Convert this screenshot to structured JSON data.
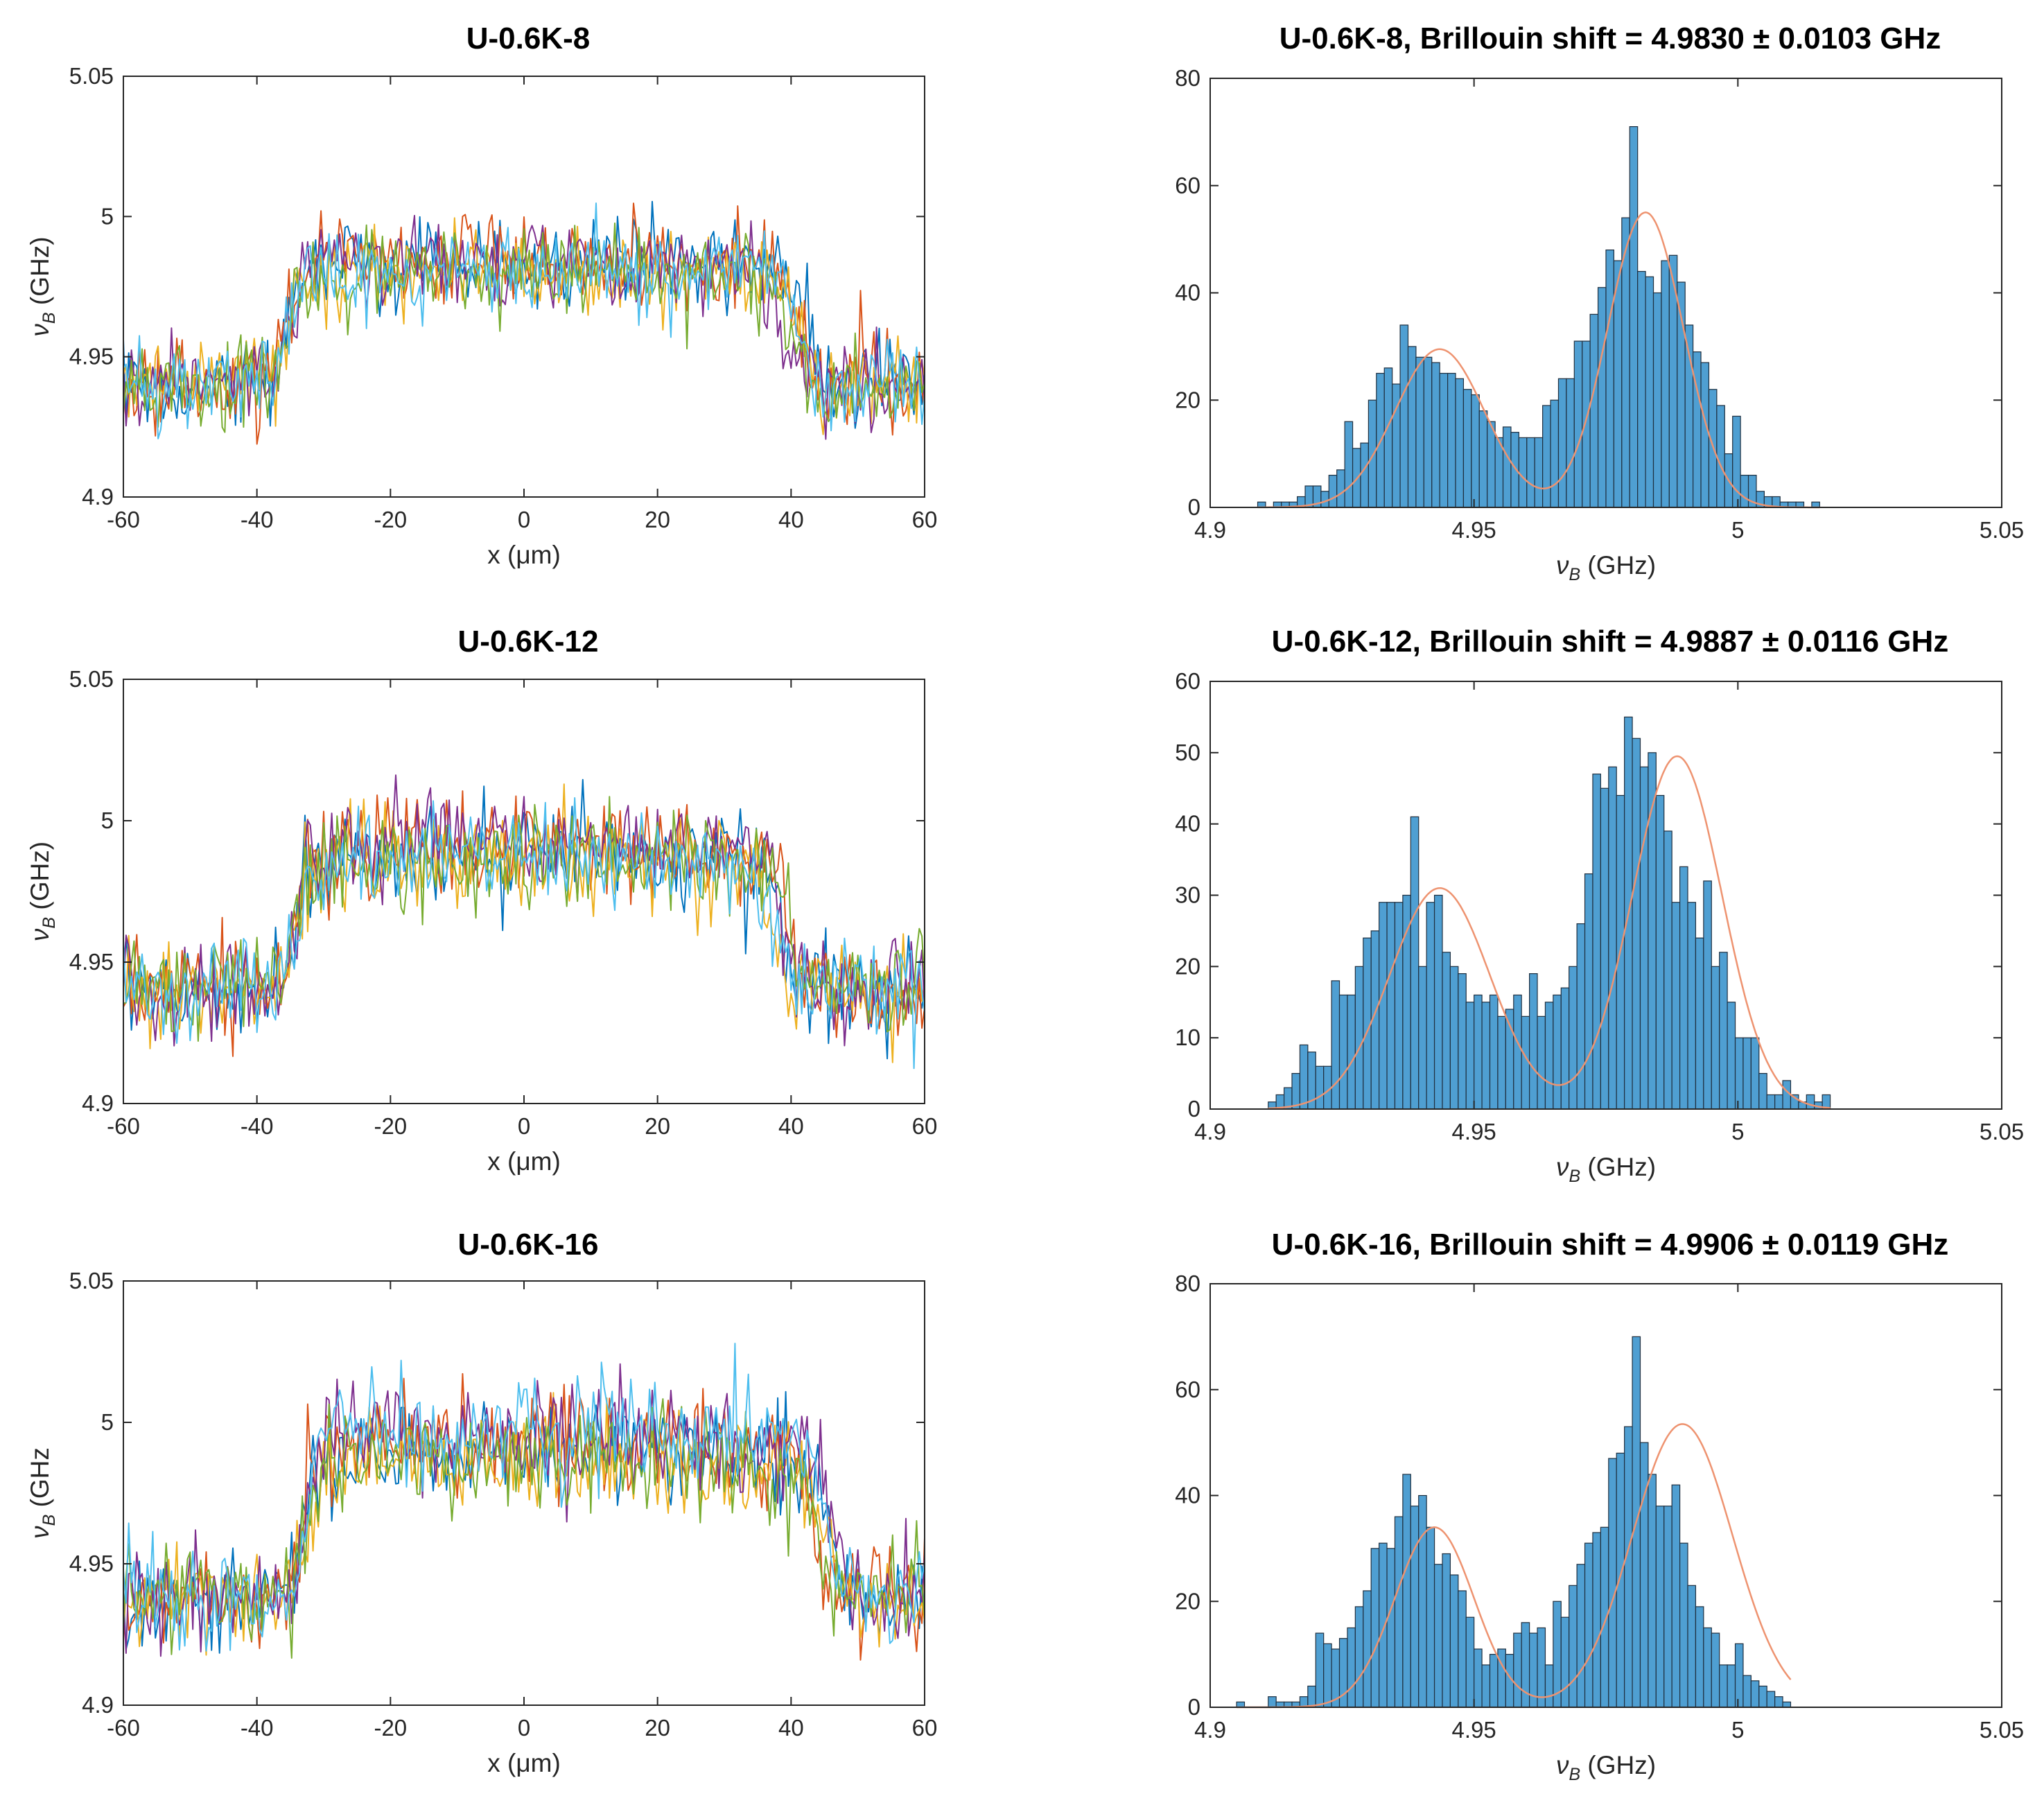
{
  "colors": {
    "trace_palette": [
      "#0072BD",
      "#D95319",
      "#EDB120",
      "#7E2F8E",
      "#77AC30",
      "#4DBEEE"
    ],
    "bar_fill": "#4f9fd2",
    "fit_line": "#ee9370"
  },
  "chart_data": [
    {
      "type": "line",
      "title": "U-0.6K-8",
      "xlabel": "x (μm)",
      "ylabel_main": "ν",
      "ylabel_sub": "B",
      "ylabel_rest": " (GHz)",
      "xlim": [
        -60,
        60
      ],
      "ylim": [
        4.9,
        5.05
      ],
      "xticks": [
        -60,
        -40,
        -20,
        0,
        20,
        40,
        60
      ],
      "xtick_labels": [
        "-60",
        "-40",
        "-20",
        "0",
        "20",
        "40",
        "60"
      ],
      "yticks": [
        4.9,
        4.95,
        5.0,
        5.05
      ],
      "ytick_labels": [
        "4.9",
        "4.95",
        "5",
        "5.05"
      ],
      "n_traces": 6,
      "baseline_ghz": 4.94,
      "plateau_ghz": 4.983,
      "step_left_um": -36,
      "step_right_um": 41,
      "noise_ghz": 0.0085,
      "series_shift_ghz": [
        0,
        0.002,
        -0.002,
        0.001,
        -0.003,
        -0.001
      ]
    },
    {
      "type": "bar",
      "title": "U-0.6K-8, Brillouin  shift = 4.9830 ± 0.0103 GHz",
      "xlabel_main": "ν",
      "xlabel_sub": "B",
      "xlabel_rest": " (GHz)",
      "xlim": [
        4.9,
        5.05
      ],
      "ylim": [
        0,
        80
      ],
      "xticks": [
        4.9,
        4.95,
        5.0,
        5.05
      ],
      "xtick_labels": [
        "4.9",
        "4.95",
        "5",
        "5.05"
      ],
      "yticks": [
        0,
        20,
        40,
        60,
        80
      ],
      "ytick_labels": [
        "0",
        "20",
        "40",
        "60",
        "80"
      ],
      "bin_start": 4.909,
      "bin_width": 0.0015,
      "counts": [
        1,
        0,
        1,
        1,
        1,
        2,
        4,
        4,
        3,
        6,
        7,
        16,
        11,
        12,
        20,
        25,
        26,
        23,
        34,
        30,
        28,
        28,
        27,
        25,
        25,
        24,
        22,
        21,
        18,
        16,
        13,
        15,
        14,
        13,
        13,
        13,
        19,
        20,
        24,
        24,
        31,
        31,
        36,
        41,
        48,
        46,
        54,
        71,
        44,
        43,
        40,
        46,
        47,
        42,
        34,
        29,
        27,
        22,
        19,
        10,
        17,
        6,
        6,
        3,
        2,
        2,
        1,
        1,
        1,
        0,
        1
      ],
      "fit_peaks": [
        {
          "amplitude": 29.5,
          "center": 4.9435,
          "sigma": 0.0085
        },
        {
          "amplitude": 55,
          "center": 4.9825,
          "sigma": 0.0072
        }
      ]
    },
    {
      "type": "line",
      "title": "U-0.6K-12",
      "xlabel": "x (μm)",
      "ylabel_main": "ν",
      "ylabel_sub": "B",
      "ylabel_rest": " (GHz)",
      "xlim": [
        -60,
        60
      ],
      "ylim": [
        4.9,
        5.05
      ],
      "xticks": [
        -60,
        -40,
        -20,
        0,
        20,
        40,
        60
      ],
      "xtick_labels": [
        "-60",
        "-40",
        "-20",
        "0",
        "20",
        "40",
        "60"
      ],
      "yticks": [
        4.9,
        4.95,
        5.0,
        5.05
      ],
      "ytick_labels": [
        "4.9",
        "4.95",
        "5",
        "5.05"
      ],
      "n_traces": 6,
      "baseline_ghz": 4.94,
      "plateau_ghz": 4.989,
      "step_left_um": -34,
      "step_right_um": 39,
      "noise_ghz": 0.0095,
      "series_shift_ghz": [
        0,
        0.002,
        -0.002,
        0.004,
        -0.003,
        -0.001
      ]
    },
    {
      "type": "bar",
      "title": "U-0.6K-12, Brillouin  shift = 4.9887 ± 0.0116 GHz",
      "xlabel_main": "ν",
      "xlabel_sub": "B",
      "xlabel_rest": " (GHz)",
      "xlim": [
        4.9,
        5.05
      ],
      "ylim": [
        0,
        60
      ],
      "xticks": [
        4.9,
        4.95,
        5.0,
        5.05
      ],
      "xtick_labels": [
        "4.9",
        "4.95",
        "5",
        "5.05"
      ],
      "yticks": [
        0,
        10,
        20,
        30,
        40,
        50,
        60
      ],
      "ytick_labels": [
        "0",
        "10",
        "20",
        "30",
        "40",
        "50",
        "60"
      ],
      "bin_start": 4.911,
      "bin_width": 0.0015,
      "counts": [
        1,
        2,
        3,
        5,
        9,
        8,
        6,
        6,
        18,
        16,
        16,
        20,
        24,
        25,
        29,
        29,
        29,
        30,
        41,
        20,
        29,
        30,
        22,
        20,
        19,
        15,
        16,
        15,
        16,
        13,
        14,
        16,
        13,
        19,
        13,
        15,
        16,
        17,
        20,
        26,
        33,
        47,
        45,
        48,
        44,
        55,
        52,
        48,
        50,
        44,
        39,
        29,
        34,
        29,
        24,
        32,
        20,
        22,
        15,
        10,
        10,
        10,
        5,
        2,
        2,
        4,
        2,
        1,
        2,
        1,
        2
      ],
      "fit_peaks": [
        {
          "amplitude": 31,
          "center": 4.9435,
          "sigma": 0.0095
        },
        {
          "amplitude": 49.5,
          "center": 4.9885,
          "sigma": 0.0085
        }
      ]
    },
    {
      "type": "line",
      "title": "U-0.6K-16",
      "xlabel": "x (μm)",
      "ylabel_main": "ν",
      "ylabel_sub": "B",
      "ylabel_rest": " (GHz",
      "xlim": [
        -60,
        60
      ],
      "ylim": [
        4.9,
        5.05
      ],
      "xticks": [
        -60,
        -40,
        -20,
        0,
        20,
        40,
        60
      ],
      "xtick_labels": [
        "-60",
        "-40",
        "-20",
        "0",
        "20",
        "40",
        "60"
      ],
      "yticks": [
        4.9,
        4.95,
        5.0,
        5.05
      ],
      "ytick_labels": [
        "4.9",
        "4.95",
        "5",
        "5.05"
      ],
      "n_traces": 6,
      "baseline_ghz": 4.938,
      "plateau_ghz": 4.991,
      "step_left_um": -32,
      "step_right_um": 45,
      "noise_ghz": 0.0095,
      "series_shift_ghz": [
        0,
        0.003,
        -0.005,
        0.004,
        -0.004,
        0.006
      ]
    },
    {
      "type": "bar",
      "title": "U-0.6K-16, Brillouin  shift = 4.9906 ± 0.0119 GHz",
      "xlabel_main": "ν",
      "xlabel_sub": "B",
      "xlabel_rest": " (GHz)",
      "xlim": [
        4.9,
        5.05
      ],
      "ylim": [
        0,
        80
      ],
      "xticks": [
        4.9,
        4.95,
        5.0,
        5.05
      ],
      "xtick_labels": [
        "4.9",
        "4.95",
        "5",
        "5.05"
      ],
      "yticks": [
        0,
        20,
        40,
        60,
        80
      ],
      "ytick_labels": [
        "0",
        "20",
        "40",
        "60",
        "80"
      ],
      "bin_start": 4.905,
      "bin_width": 0.0015,
      "counts": [
        1,
        0,
        0,
        0,
        2,
        1,
        1,
        1,
        2,
        4,
        14,
        12,
        11,
        13,
        15,
        19,
        22,
        30,
        31,
        30,
        36,
        44,
        38,
        40,
        34,
        27,
        29,
        25,
        22,
        17,
        11,
        8,
        10,
        11,
        10,
        14,
        16,
        14,
        15,
        8,
        20,
        17,
        23,
        27,
        31,
        33,
        34,
        47,
        48,
        53,
        70,
        50,
        44,
        38,
        38,
        42,
        31,
        23,
        19,
        15,
        14,
        8,
        8,
        12,
        6,
        5,
        4,
        3,
        2,
        1
      ],
      "fit_peaks": [
        {
          "amplitude": 34,
          "center": 4.9425,
          "sigma": 0.0075
        },
        {
          "amplitude": 53.5,
          "center": 4.9895,
          "sigma": 0.0095
        }
      ]
    }
  ]
}
